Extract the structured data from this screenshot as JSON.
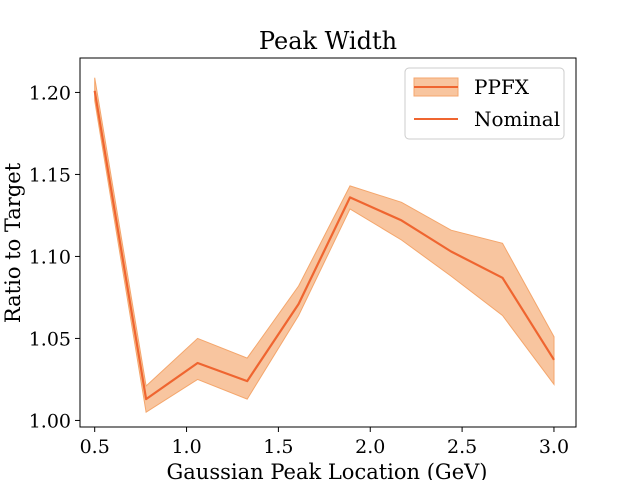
{
  "chart_data": {
    "type": "line",
    "title": "Peak Width",
    "xlabel": "Gaussian Peak Location (GeV)",
    "ylabel": "Ratio to Target",
    "xlim": [
      0.42,
      3.12
    ],
    "ylim": [
      0.996,
      1.221
    ],
    "xticks": [
      0.5,
      1.0,
      1.5,
      2.0,
      2.5,
      3.0
    ],
    "xtick_labels": [
      "0.5",
      "1.0",
      "1.5",
      "2.0",
      "2.5",
      "3.0"
    ],
    "yticks": [
      1.0,
      1.05,
      1.1,
      1.15,
      1.2
    ],
    "ytick_labels": [
      "1.00",
      "1.05",
      "1.10",
      "1.15",
      "1.20"
    ],
    "grid": false,
    "legend_position": "top-right",
    "x": [
      0.5,
      0.78,
      1.06,
      1.33,
      1.61,
      1.89,
      2.17,
      2.44,
      2.72,
      3.0
    ],
    "series": [
      {
        "name": "PPFX",
        "kind": "band",
        "color": "#f4a66c",
        "lower": [
          1.195,
          1.005,
          1.025,
          1.013,
          1.064,
          1.129,
          1.11,
          1.088,
          1.064,
          1.022
        ],
        "upper": [
          1.209,
          1.021,
          1.05,
          1.038,
          1.082,
          1.143,
          1.133,
          1.116,
          1.108,
          1.051
        ]
      },
      {
        "name": "Nominal",
        "kind": "line",
        "color": "#ef6530",
        "values": [
          1.201,
          1.013,
          1.035,
          1.024,
          1.071,
          1.136,
          1.122,
          1.103,
          1.087,
          1.037
        ]
      }
    ]
  }
}
